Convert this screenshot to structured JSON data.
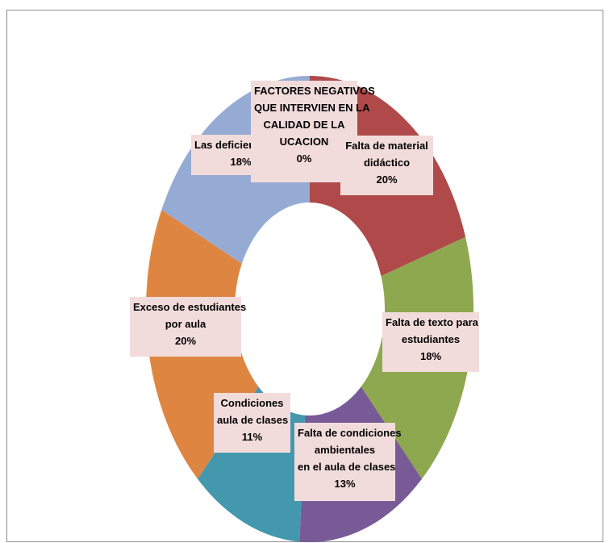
{
  "chart_data": {
    "type": "pie",
    "variant": "doughnut",
    "legend": "none",
    "slices": [
      {
        "label": "FACTORES NEGATIVOS QUE INTERVIEN EN LA CALIDAD DE LA UCACION",
        "label_lines": [
          "FACTORES NEGATIVOS",
          "QUE INTERVIEN EN LA",
          "CALIDAD DE LA",
          "UCACION"
        ],
        "percent_label": "0%",
        "value": 0,
        "color": "#4f81bd"
      },
      {
        "label": "Falta de material didáctico",
        "label_lines": [
          "Falta de material",
          "didáctico"
        ],
        "percent_label": "20%",
        "value": 20,
        "color": "#b04a4a"
      },
      {
        "label": "Falta de texto para estudiantes",
        "label_lines": [
          "Falta de texto  para",
          "estudiantes"
        ],
        "percent_label": "18%",
        "value": 18,
        "color": "#8ea84f"
      },
      {
        "label": "Falta de condiciones ambientales en el aula de clases",
        "label_lines": [
          "Falta de condiciones",
          "ambientales",
          "en el aula de clases"
        ],
        "percent_label": "13%",
        "value": 13,
        "color": "#785b96"
      },
      {
        "label": "Condiciones aula de clases",
        "label_lines": [
          "Condiciones",
          "aula de clases"
        ],
        "percent_label": "11%",
        "value": 11,
        "color": "#4498ae"
      },
      {
        "label": "Exceso de estudiantes por aula",
        "label_lines": [
          "Exceso de estudiantes",
          "por aula"
        ],
        "percent_label": "20%",
        "value": 20,
        "color": "#de8641"
      },
      {
        "label": "Las deficiencias TICs",
        "label_lines": [
          "Las deficiencias TICs"
        ],
        "percent_label": "18%",
        "value": 18,
        "color": "#96abd4"
      }
    ]
  }
}
